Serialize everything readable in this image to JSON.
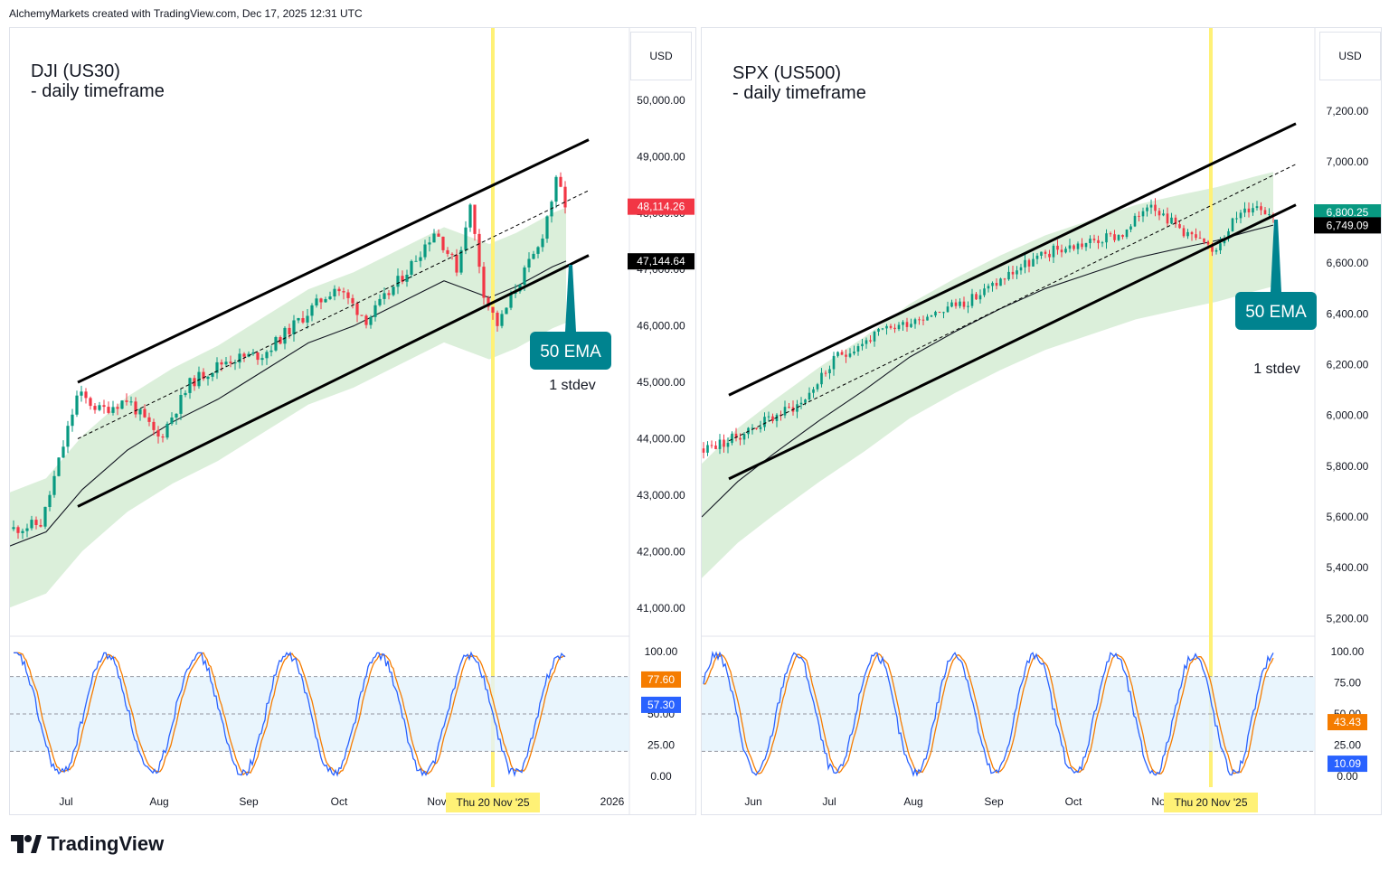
{
  "header": {
    "text": "AlchemyMarkets created with TradingView.com, Dec 17, 2025 12:31 UTC"
  },
  "footer": {
    "logo_text": "TradingView"
  },
  "colors": {
    "up": "#089981",
    "down": "#f23645",
    "band": "#c8e6c9",
    "stoch_k": "#2962ff",
    "stoch_d": "#f57c00",
    "highlight": "#fff176",
    "ema_label": "#00838f"
  },
  "chart_data": [
    {
      "type": "candlestick",
      "title": "DJI (US30)\n- daily timeframe",
      "currency": "USD",
      "ylim": [
        40500,
        50800
      ],
      "yticks": [
        "50,000.00",
        "49,000.00",
        "48,000.00",
        "47,000.00",
        "46,000.00",
        "45,000.00",
        "44,000.00",
        "43,000.00",
        "42,000.00",
        "41,000.00"
      ],
      "ytick_values": [
        50000,
        49000,
        48000,
        47000,
        46000,
        45000,
        44000,
        43000,
        42000,
        41000
      ],
      "xticks": [
        "Jul",
        "Aug",
        "Sep",
        "Oct",
        "Nov",
        "2026"
      ],
      "price_labels": [
        {
          "text": "48,114.26",
          "value": 48114.26,
          "color": "#f23645"
        },
        {
          "text": "47,144.64",
          "value": 47144.64,
          "color": "#000000"
        }
      ],
      "annotations": {
        "ema": "50 EMA",
        "stdev": "1 stdev"
      },
      "highlight_label": "Thu 20 Nov '25",
      "stoch": {
        "yticks": [
          "100.00",
          "50.00",
          "25.00",
          "0.00"
        ],
        "ytick_values": [
          100,
          50,
          25,
          0
        ],
        "labels": [
          {
            "text": "77.60",
            "value": 77.6,
            "color": "#f57c00"
          },
          {
            "text": "57.30",
            "value": 57.3,
            "color": "#2962ff"
          }
        ]
      }
    },
    {
      "type": "candlestick",
      "title": "SPX (US500)\n- daily timeframe",
      "currency": "USD",
      "ylim": [
        5130,
        7420
      ],
      "yticks": [
        "7,200.00",
        "7,000.00",
        "6,800.00",
        "6,600.00",
        "6,400.00",
        "6,200.00",
        "6,000.00",
        "5,800.00",
        "5,600.00",
        "5,400.00",
        "5,200.00"
      ],
      "ytick_values": [
        7200,
        7000,
        6800,
        6600,
        6400,
        6200,
        6000,
        5800,
        5600,
        5400,
        5200
      ],
      "xticks": [
        "Jun",
        "Jul",
        "Aug",
        "Sep",
        "Oct",
        "No"
      ],
      "price_labels": [
        {
          "text": "6,800.25",
          "value": 6800.25,
          "color": "#089981"
        },
        {
          "text": "6,749.09",
          "value": 6749.09,
          "color": "#000000"
        }
      ],
      "annotations": {
        "ema": "50 EMA",
        "stdev": "1 stdev"
      },
      "highlight_label": "Thu 20 Nov '25",
      "stoch": {
        "yticks": [
          "100.00",
          "75.00",
          "50.00",
          "25.00",
          "0.00"
        ],
        "ytick_values": [
          100,
          75,
          50,
          25,
          0
        ],
        "labels": [
          {
            "text": "43.43",
            "value": 43.43,
            "color": "#f57c00"
          },
          {
            "text": "10.09",
            "value": 10.09,
            "color": "#2962ff"
          }
        ]
      }
    }
  ]
}
